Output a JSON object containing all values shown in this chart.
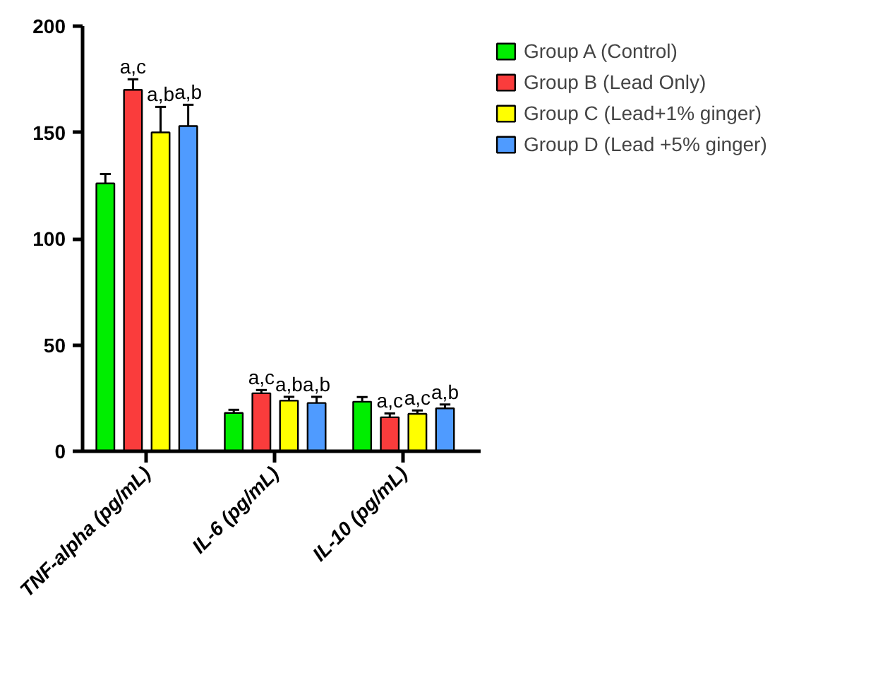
{
  "chart_data": {
    "type": "bar",
    "categories": [
      "TNF-alpha (pg/mL)",
      "IL-6 (pg/mL)",
      "IL-10 (pg/mL)"
    ],
    "series": [
      {
        "name": "Group A (Control)",
        "color": "#00ee00",
        "values": [
          126,
          18,
          23.3
        ],
        "errors": [
          [
            126,
            130.4
          ],
          [
            18,
            19.5
          ],
          [
            23.3,
            25.5
          ]
        ]
      },
      {
        "name": "Group B (Lead Only)",
        "color": "#fa3c3c",
        "values": [
          170,
          27.3,
          16
        ],
        "errors": [
          [
            170,
            175
          ],
          [
            27.3,
            28.8
          ],
          [
            16,
            17.8
          ]
        ],
        "value_labels": [
          "a,c",
          "a,c",
          "a,c"
        ]
      },
      {
        "name": "Group C (Lead+1% ginger)",
        "color": "#ffff00",
        "values": [
          150,
          23.8,
          17.6
        ],
        "errors": [
          [
            150,
            162
          ],
          [
            23.8,
            25.6
          ],
          [
            17.6,
            19.2
          ]
        ],
        "value_labels": [
          "a,b",
          "a,b",
          "a,c"
        ]
      },
      {
        "name": "Group D (Lead +5% ginger)",
        "color": "#4f9bff",
        "values": [
          153,
          22.7,
          20.2
        ],
        "errors": [
          [
            153,
            163
          ],
          [
            22.7,
            25.6
          ],
          [
            20.2,
            22
          ]
        ],
        "value_labels": [
          "a,b",
          "a,b",
          "a,b"
        ]
      }
    ],
    "ylim": [
      0,
      200
    ],
    "yticks": [
      0,
      50,
      100,
      150,
      200
    ],
    "grid": false,
    "legend": "top right"
  }
}
